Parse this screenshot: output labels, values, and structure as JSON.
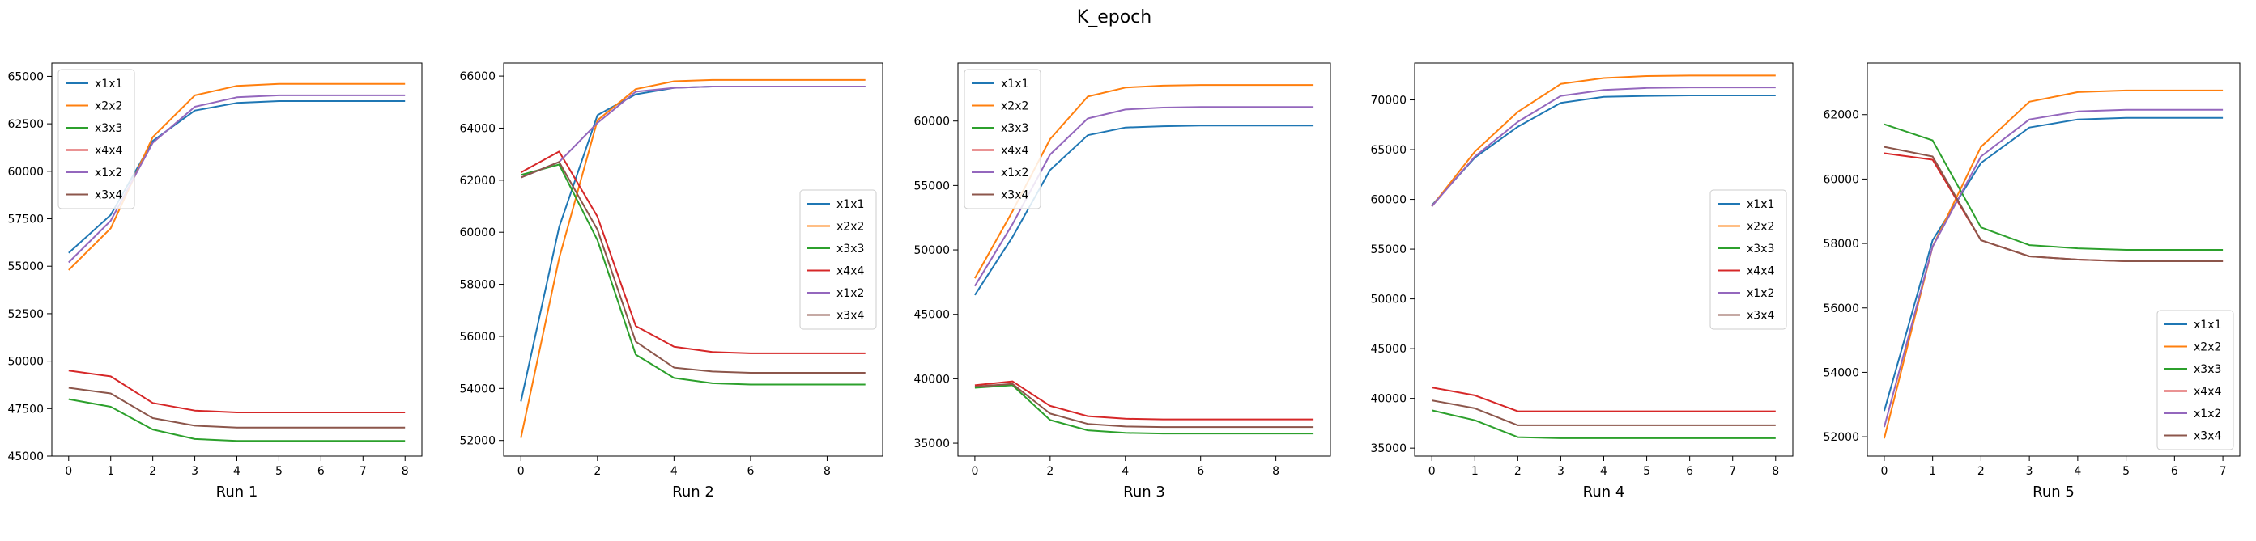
{
  "figure": {
    "suptitle": "K_epoch",
    "colors": {
      "x1x1": "#1f77b4",
      "x2x2": "#ff7f0e",
      "x3x3": "#2ca02c",
      "x4x4": "#d62728",
      "x1x2": "#9467bd",
      "x3x4": "#8c564b"
    }
  },
  "chart_data": [
    {
      "type": "line",
      "xlabel": "Run 1",
      "x": [
        0,
        1,
        2,
        3,
        4,
        5,
        6,
        7,
        8
      ],
      "xticks": [
        "0",
        "1",
        "2",
        "3",
        "4",
        "5",
        "6",
        "7",
        "8"
      ],
      "xlim": [
        -0.4,
        8.4
      ],
      "ylim": [
        45000,
        65700
      ],
      "yticks": [
        "45000",
        "47500",
        "50000",
        "52500",
        "55000",
        "57500",
        "60000",
        "62500",
        "65000"
      ],
      "legend": "upper left",
      "series": [
        {
          "name": "x1x1",
          "values": [
            55700,
            57700,
            61600,
            63200,
            63600,
            63700,
            63700,
            63700,
            63700
          ]
        },
        {
          "name": "x2x2",
          "values": [
            54800,
            57000,
            61800,
            64000,
            64500,
            64600,
            64600,
            64600,
            64600
          ]
        },
        {
          "name": "x3x3",
          "values": [
            48000,
            47600,
            46400,
            45900,
            45800,
            45800,
            45800,
            45800,
            45800
          ]
        },
        {
          "name": "x4x4",
          "values": [
            49500,
            49200,
            47800,
            47400,
            47300,
            47300,
            47300,
            47300,
            47300
          ]
        },
        {
          "name": "x1x2",
          "values": [
            55200,
            57400,
            61500,
            63400,
            63900,
            64000,
            64000,
            64000,
            64000
          ]
        },
        {
          "name": "x3x4",
          "values": [
            48600,
            48300,
            47000,
            46600,
            46500,
            46500,
            46500,
            46500,
            46500
          ]
        }
      ]
    },
    {
      "type": "line",
      "xlabel": "Run 2",
      "x": [
        0,
        1,
        2,
        3,
        4,
        5,
        6,
        7,
        8,
        9
      ],
      "xticks": [
        "0",
        "2",
        "4",
        "6",
        "8"
      ],
      "xlim": [
        -0.45,
        9.45
      ],
      "ylim": [
        51400,
        66500
      ],
      "yticks": [
        "52000",
        "54000",
        "56000",
        "58000",
        "60000",
        "62000",
        "64000",
        "66000"
      ],
      "legend": "center right",
      "series": [
        {
          "name": "x1x1",
          "values": [
            53500,
            60200,
            64500,
            65300,
            65550,
            65600,
            65600,
            65600,
            65600,
            65600
          ]
        },
        {
          "name": "x2x2",
          "values": [
            52100,
            59000,
            64300,
            65500,
            65800,
            65850,
            65850,
            65850,
            65850,
            65850
          ]
        },
        {
          "name": "x3x3",
          "values": [
            62200,
            62600,
            59700,
            55300,
            54400,
            54200,
            54150,
            54150,
            54150,
            54150
          ]
        },
        {
          "name": "x4x4",
          "values": [
            62300,
            63100,
            60600,
            56400,
            55600,
            55400,
            55350,
            55350,
            55350,
            55350
          ]
        },
        {
          "name": "x1x2",
          "values": [
            62100,
            62700,
            64200,
            65400,
            65550,
            65600,
            65600,
            65600,
            65600,
            65600
          ]
        },
        {
          "name": "x3x4",
          "values": [
            62100,
            62700,
            60100,
            55800,
            54800,
            54650,
            54600,
            54600,
            54600,
            54600
          ]
        }
      ]
    },
    {
      "type": "line",
      "xlabel": "Run 3",
      "x": [
        0,
        1,
        2,
        3,
        4,
        5,
        6,
        7,
        8,
        9
      ],
      "xticks": [
        "0",
        "2",
        "4",
        "6",
        "8"
      ],
      "xlim": [
        -0.45,
        9.45
      ],
      "ylim": [
        34000,
        64500
      ],
      "yticks": [
        "35000",
        "40000",
        "45000",
        "50000",
        "55000",
        "60000"
      ],
      "legend": "upper left",
      "series": [
        {
          "name": "x1x1",
          "values": [
            46500,
            51000,
            56200,
            58900,
            59500,
            59600,
            59650,
            59650,
            59650,
            59650
          ]
        },
        {
          "name": "x2x2",
          "values": [
            47800,
            53000,
            58600,
            61900,
            62600,
            62750,
            62800,
            62800,
            62800,
            62800
          ]
        },
        {
          "name": "x3x3",
          "values": [
            39300,
            39500,
            36800,
            36000,
            35800,
            35750,
            35750,
            35750,
            35750,
            35750
          ]
        },
        {
          "name": "x4x4",
          "values": [
            39500,
            39800,
            37900,
            37100,
            36900,
            36850,
            36850,
            36850,
            36850,
            36850
          ]
        },
        {
          "name": "x1x2",
          "values": [
            47200,
            52000,
            57400,
            60200,
            60900,
            61050,
            61100,
            61100,
            61100,
            61100
          ]
        },
        {
          "name": "x3x4",
          "values": [
            39400,
            39600,
            37300,
            36500,
            36300,
            36250,
            36250,
            36250,
            36250,
            36250
          ]
        }
      ]
    },
    {
      "type": "line",
      "xlabel": "Run 4",
      "x": [
        0,
        1,
        2,
        3,
        4,
        5,
        6,
        7,
        8
      ],
      "xticks": [
        "0",
        "1",
        "2",
        "3",
        "4",
        "5",
        "6",
        "7",
        "8"
      ],
      "xlim": [
        -0.4,
        8.4
      ],
      "ylim": [
        34200,
        73700
      ],
      "yticks": [
        "35000",
        "40000",
        "45000",
        "50000",
        "55000",
        "60000",
        "65000",
        "70000"
      ],
      "legend": "center right",
      "series": [
        {
          "name": "x1x1",
          "values": [
            59400,
            64200,
            67300,
            69700,
            70300,
            70400,
            70450,
            70450,
            70450
          ]
        },
        {
          "name": "x2x2",
          "values": [
            59300,
            64800,
            68800,
            71600,
            72200,
            72400,
            72450,
            72450,
            72450
          ]
        },
        {
          "name": "x3x3",
          "values": [
            38800,
            37800,
            36100,
            36000,
            36000,
            36000,
            36000,
            36000,
            36000
          ]
        },
        {
          "name": "x4x4",
          "values": [
            41100,
            40300,
            38700,
            38700,
            38700,
            38700,
            38700,
            38700,
            38700
          ]
        },
        {
          "name": "x1x2",
          "values": [
            59300,
            64300,
            67800,
            70400,
            71000,
            71200,
            71250,
            71250,
            71250
          ]
        },
        {
          "name": "x3x4",
          "values": [
            39800,
            39000,
            37300,
            37300,
            37300,
            37300,
            37300,
            37300,
            37300
          ]
        }
      ]
    },
    {
      "type": "line",
      "xlabel": "Run 5",
      "x": [
        0,
        1,
        2,
        3,
        4,
        5,
        6,
        7
      ],
      "xticks": [
        "0",
        "1",
        "2",
        "3",
        "4",
        "5",
        "6",
        "7"
      ],
      "xlim": [
        -0.35,
        7.35
      ],
      "ylim": [
        51400,
        63600
      ],
      "yticks": [
        "52000",
        "54000",
        "56000",
        "58000",
        "60000",
        "62000"
      ],
      "legend": "lower right",
      "series": [
        {
          "name": "x1x1",
          "values": [
            52800,
            58100,
            60500,
            61600,
            61850,
            61900,
            61900,
            61900
          ]
        },
        {
          "name": "x2x2",
          "values": [
            51950,
            57900,
            61000,
            62400,
            62700,
            62750,
            62750,
            62750
          ]
        },
        {
          "name": "x3x3",
          "values": [
            61700,
            61200,
            58500,
            57950,
            57850,
            57800,
            57800,
            57800
          ]
        },
        {
          "name": "x4x4",
          "values": [
            60800,
            60600,
            58100,
            57600,
            57500,
            57450,
            57450,
            57450
          ]
        },
        {
          "name": "x1x2",
          "values": [
            52300,
            57900,
            60700,
            61850,
            62100,
            62150,
            62150,
            62150
          ]
        },
        {
          "name": "x3x4",
          "values": [
            61000,
            60700,
            58100,
            57600,
            57500,
            57450,
            57450,
            57450
          ]
        }
      ]
    }
  ]
}
